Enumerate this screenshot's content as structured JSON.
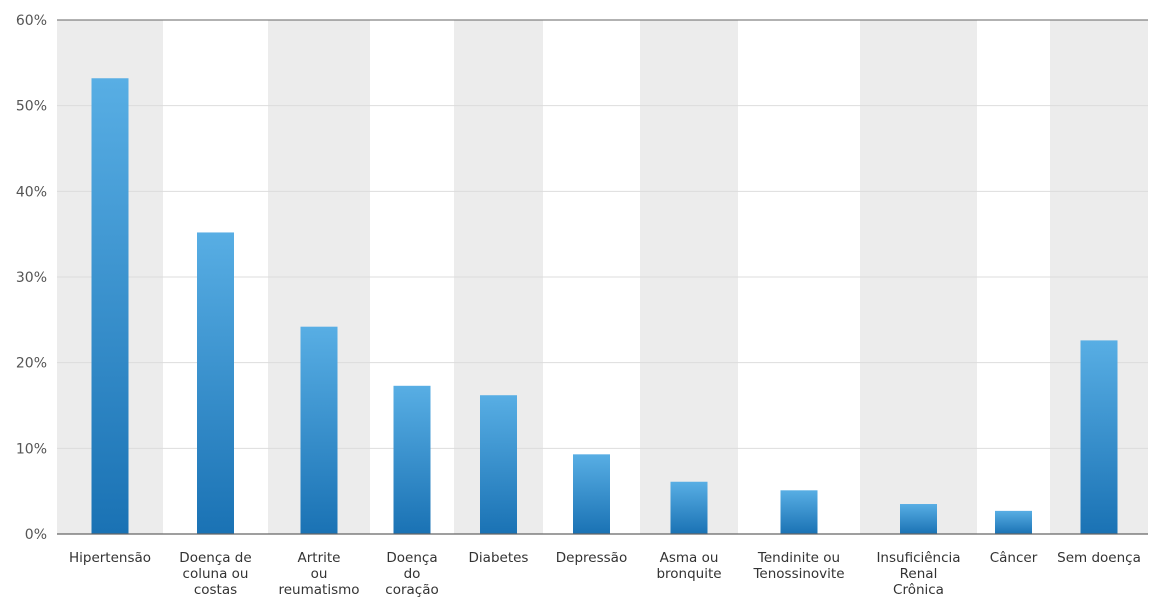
{
  "chart_data": {
    "type": "bar",
    "title": "",
    "xlabel": "",
    "ylabel": "",
    "ylim": [
      0,
      60
    ],
    "yticks": [
      0,
      10,
      20,
      30,
      40,
      50,
      60
    ],
    "ytick_format": "{v}%",
    "grid": true,
    "legend": "none",
    "categories": [
      [
        "Hipertensão"
      ],
      [
        "Doença de",
        "coluna ou",
        "costas"
      ],
      [
        "Artrite",
        "ou",
        "reumatismo"
      ],
      [
        "Doença",
        "do",
        "coração"
      ],
      [
        "Diabetes"
      ],
      [
        "Depressão"
      ],
      [
        "Asma ou",
        "bronquite"
      ],
      [
        "Tendinite ou",
        "Tenossinovite"
      ],
      [
        "Insuficiência",
        "Renal",
        "Crônica"
      ],
      [
        "Câncer"
      ],
      [
        "Sem doença"
      ]
    ],
    "values": [
      53.2,
      35.2,
      24.2,
      17.3,
      16.2,
      9.3,
      6.1,
      5.1,
      3.5,
      2.7,
      22.6
    ],
    "colors": {
      "bar_top": "#58aee4",
      "bar_bottom": "#1a72b4",
      "band_shaded": "#ececec",
      "band_plain": "#ffffff",
      "gridline": "#dddddd",
      "axis": "#666666"
    }
  }
}
